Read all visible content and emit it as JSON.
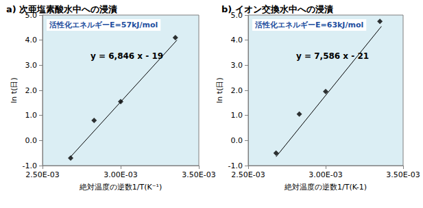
{
  "chart_data": [
    {
      "type": "scatter",
      "title": "a) 次亜塩素酸水中への浸漬",
      "x_label": "絶対温度の逆数1/T(K⁻¹)",
      "y_label": "ln t(日)",
      "annotations": [
        "活性化エネルギーE=57kJ/mol",
        "y = 6,846 x - 19"
      ],
      "series": [
        {
          "type": "scatter",
          "color": "#000000",
          "marker": "diamond",
          "x": [
            0.00268,
            0.00283,
            0.003,
            0.00335
          ],
          "values": [
            -0.7,
            0.8,
            1.55,
            4.1
          ]
        },
        {
          "type": "line",
          "color": "#000000",
          "line_style": "solid",
          "x": [
            0.00268,
            0.00336
          ],
          "values": [
            -0.65,
            4.0
          ]
        }
      ],
      "xlim": [
        0.0025,
        0.0035
      ],
      "xticks": [
        {
          "value": 0.0025,
          "label": "2.50E-03"
        },
        {
          "value": 0.003,
          "label": "3.00E-03"
        },
        {
          "value": 0.0035,
          "label": "3.50E-03"
        }
      ],
      "ylim": [
        -1,
        5
      ],
      "yticks": [
        {
          "value": -1,
          "label": "-1.0"
        },
        {
          "value": 0,
          "label": "0.0"
        },
        {
          "value": 1,
          "label": "1.0"
        },
        {
          "value": 2,
          "label": "2.0"
        },
        {
          "value": 3,
          "label": "3.0"
        },
        {
          "value": 4,
          "label": "4.0"
        },
        {
          "value": 5,
          "label": "5.0"
        }
      ],
      "grid": false
    },
    {
      "type": "scatter",
      "title": "b) イオン交換水中への浸漬",
      "x_label": "絶対温度の逆数1/T(K-1)",
      "y_label": "ln t(日)",
      "annotations": [
        "活性化エネルギーE=63kJ/mol",
        "y = 7,586 x - 21"
      ],
      "series": [
        {
          "type": "scatter",
          "color": "#000000",
          "marker": "diamond",
          "x": [
            0.00268,
            0.00283,
            0.003,
            0.00335
          ],
          "values": [
            -0.5,
            1.05,
            1.95,
            4.75
          ]
        },
        {
          "type": "line",
          "color": "#000000",
          "line_style": "solid",
          "x": [
            0.00268,
            0.00336
          ],
          "values": [
            -0.65,
            4.55
          ]
        }
      ],
      "xlim": [
        0.0025,
        0.0035
      ],
      "xticks": [
        {
          "value": 0.0025,
          "label": "2.50E-03"
        },
        {
          "value": 0.003,
          "label": "3.00E-03"
        },
        {
          "value": 0.0035,
          "label": "3.50E-03"
        }
      ],
      "ylim": [
        -1,
        5
      ],
      "yticks": [
        {
          "value": -1,
          "label": "-1.0"
        },
        {
          "value": 0,
          "label": "0.0"
        },
        {
          "value": 1,
          "label": "1.0"
        },
        {
          "value": 2,
          "label": "2.0"
        },
        {
          "value": 3,
          "label": "3.0"
        },
        {
          "value": 4,
          "label": "4.0"
        },
        {
          "value": 5,
          "label": "5.0"
        }
      ],
      "grid": false
    }
  ]
}
